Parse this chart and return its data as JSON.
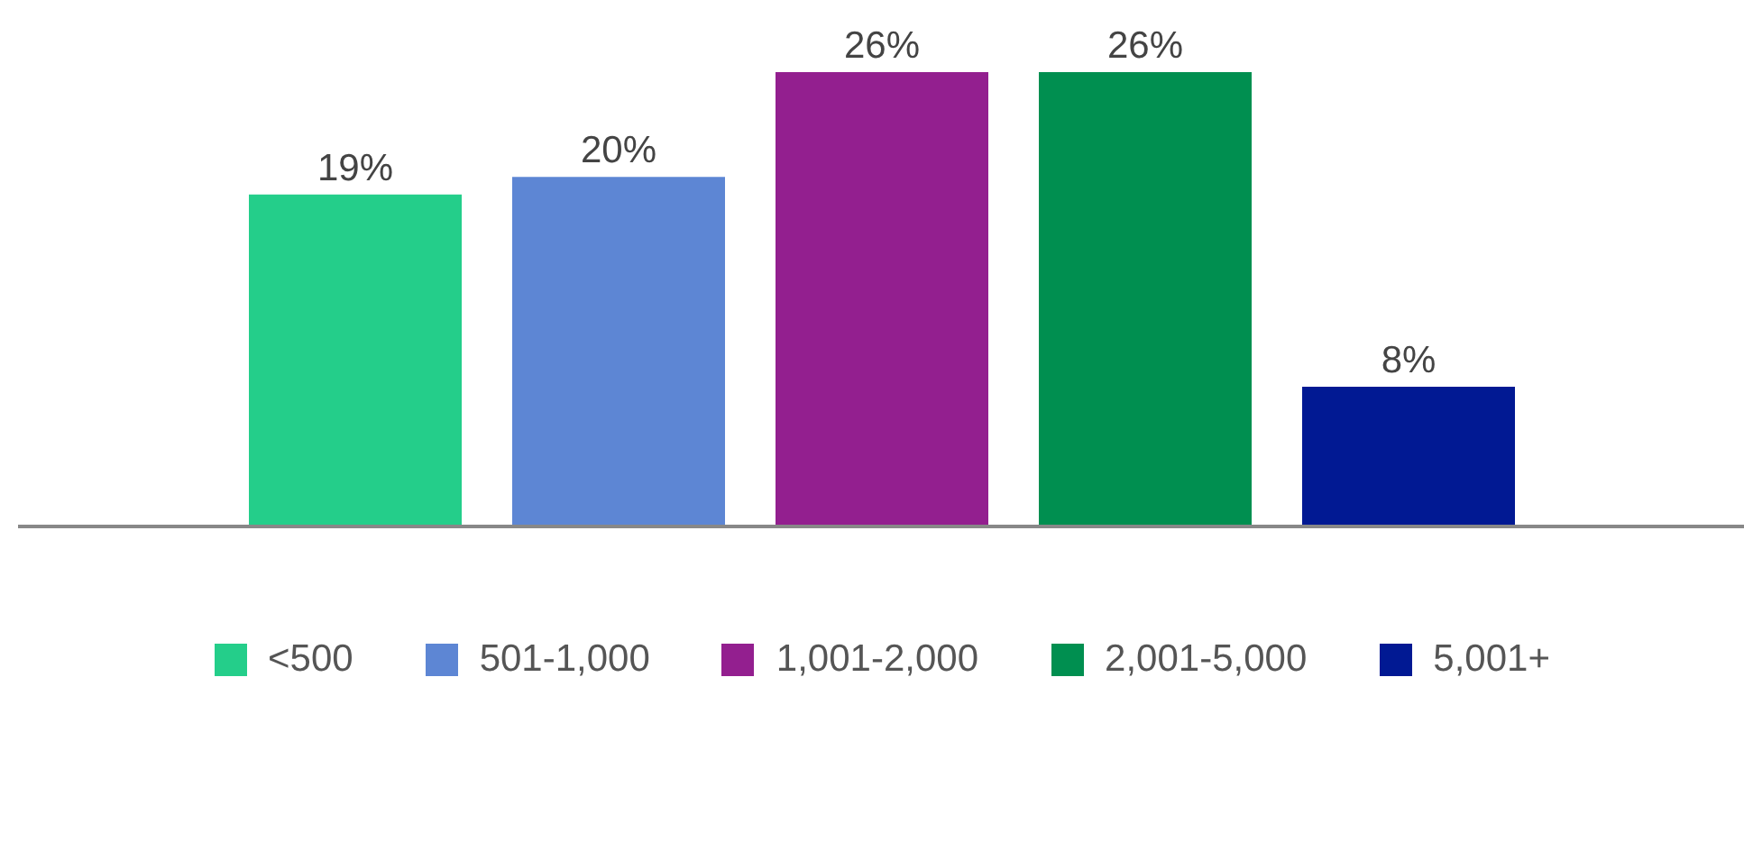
{
  "chart_data": {
    "type": "bar",
    "categories": [
      null
    ],
    "legend": "bottom",
    "grid": false,
    "series": [
      {
        "name": "<500",
        "color": "#24ce8a",
        "values": [
          19
        ],
        "value_labels": [
          "19%"
        ]
      },
      {
        "name": "501-1,000",
        "color": "#5d86d4",
        "values": [
          20
        ],
        "value_labels": [
          "20%"
        ]
      },
      {
        "name": "1,001-2,000",
        "color": "#931f8f",
        "values": [
          26
        ],
        "value_labels": [
          "26%"
        ]
      },
      {
        "name": "2,001-5,000",
        "color": "#008f50",
        "values": [
          26
        ],
        "value_labels": [
          "26%"
        ]
      },
      {
        "name": "5,001+",
        "color": "#011993",
        "values": [
          8
        ],
        "value_labels": [
          "8%"
        ]
      }
    ]
  }
}
